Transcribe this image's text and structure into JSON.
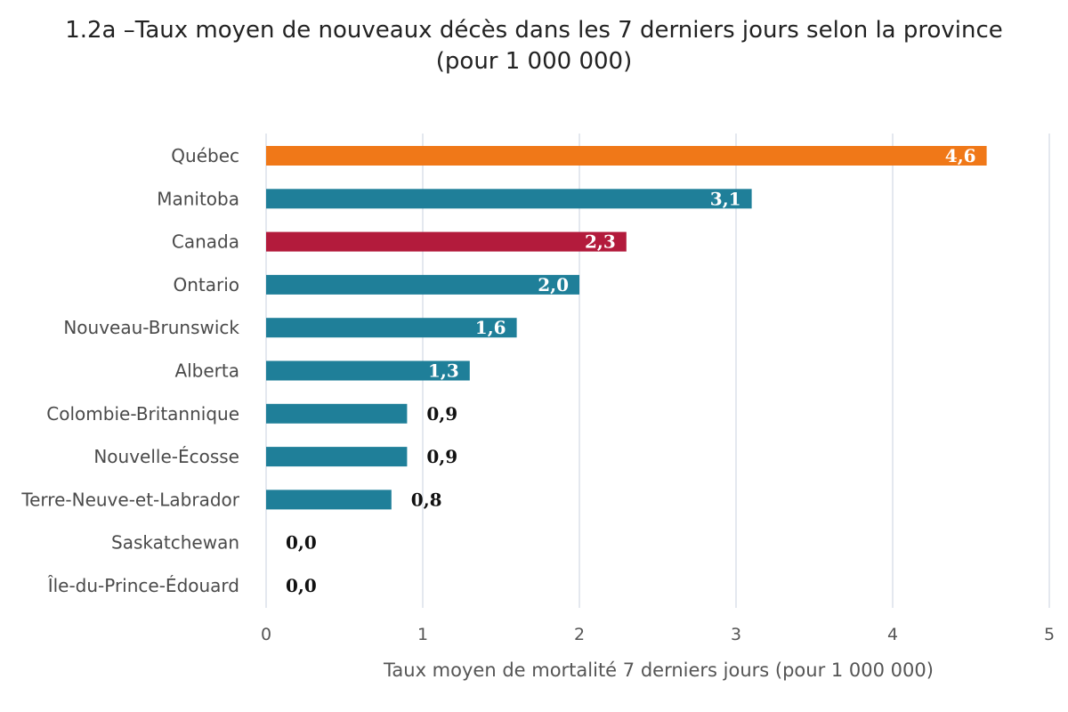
{
  "chart_data": {
    "type": "bar",
    "orientation": "horizontal",
    "title_line1": "1.2a –Taux moyen de nouveaux décès dans les 7 derniers jours selon la province",
    "title_line2": "(pour 1 000 000)",
    "xlabel": "Taux moyen de mortalité 7 derniers jours (pour 1 000 000)",
    "ylabel": "",
    "xlim": [
      0,
      5
    ],
    "xticks": [
      0,
      1,
      2,
      3,
      4,
      5
    ],
    "grid": true,
    "legend": false,
    "categories": [
      "Québec",
      "Manitoba",
      "Canada",
      "Ontario",
      "Nouveau-Brunswick",
      "Alberta",
      "Colombie-Britannique",
      "Nouvelle-Écosse",
      "Terre-Neuve-et-Labrador",
      "Saskatchewan",
      "Île-du-Prince-Édouard"
    ],
    "values": [
      4.6,
      3.1,
      2.3,
      2.0,
      1.6,
      1.3,
      0.9,
      0.9,
      0.8,
      0.0,
      0.0
    ],
    "value_labels": [
      "4,6",
      "3,1",
      "2,3",
      "2,0",
      "1,6",
      "1,3",
      "0,9",
      "0,9",
      "0,8",
      "0,0",
      "0,0"
    ],
    "colors": [
      "#F07818",
      "#1F7F99",
      "#B31B3C",
      "#1F7F99",
      "#1F7F99",
      "#1F7F99",
      "#1F7F99",
      "#1F7F99",
      "#1F7F99",
      "#1F7F99",
      "#1F7F99"
    ],
    "gridline_color": "#D5DCE6"
  }
}
